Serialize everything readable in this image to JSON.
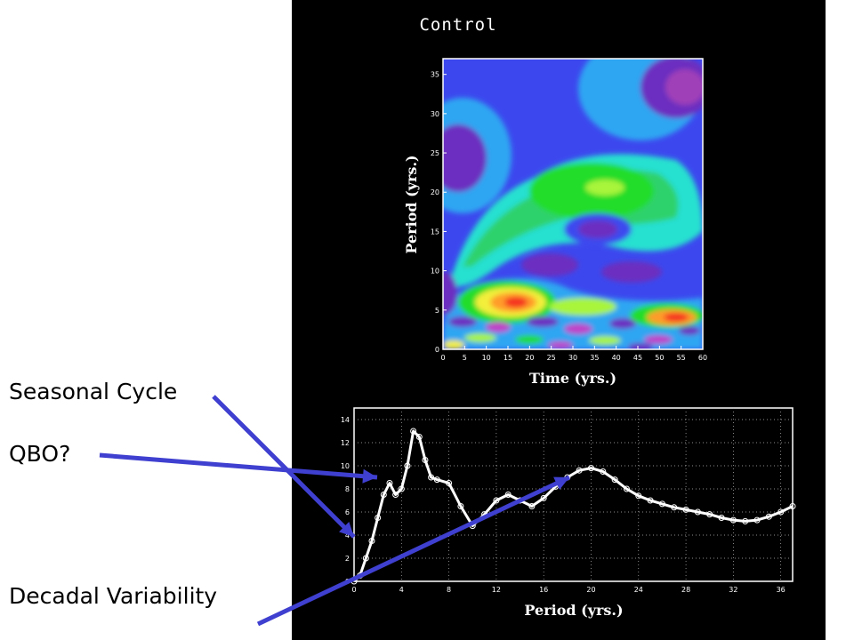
{
  "annotations": {
    "seasonal_cycle": "Seasonal Cycle",
    "qbo": "QBO?",
    "decadal_variability": "Decadal Variability"
  },
  "colors": {
    "arrow": "#3f3fd0",
    "panel_background": "#000000",
    "slide_background": "#ffffff",
    "wavelet_low": "#5a28c8",
    "wavelet_high": "#e81818"
  },
  "chart_data": [
    {
      "type": "heatmap",
      "title": "Control",
      "xlabel": "Time (yrs.)",
      "ylabel": "Period (yrs.)",
      "xlim": [
        0,
        60
      ],
      "ylim": [
        0,
        37
      ],
      "xticks": [
        0,
        5,
        10,
        15,
        20,
        25,
        30,
        35,
        40,
        45,
        50,
        55,
        60
      ],
      "yticks": [
        0,
        5,
        10,
        15,
        20,
        25,
        30,
        35
      ],
      "color_levels": [
        "#6c2fc0",
        "#3c48ee",
        "#2fa6f2",
        "#25e0d0",
        "#2fd26c",
        "#21dd2a",
        "#a8f53a",
        "#f3ef3a",
        "#ff9c2a",
        "#f53223"
      ],
      "features": [
        {
          "time": 38,
          "period": 21,
          "level": 7
        },
        {
          "time": 15,
          "period": 6,
          "level": 9
        },
        {
          "time": 55,
          "period": 4,
          "level": 9
        },
        {
          "time": 4,
          "period": 25,
          "level": 0
        },
        {
          "time": 58,
          "period": 33,
          "level": 0
        },
        {
          "time": 35,
          "period": 15,
          "level": 1
        },
        {
          "time": 25,
          "period": 10.5,
          "level": 1
        }
      ]
    },
    {
      "type": "line",
      "xlabel": "Period (yrs.)",
      "ylabel": "",
      "xlim": [
        0,
        37
      ],
      "ylim": [
        0,
        15
      ],
      "xticks": [
        0,
        4,
        8,
        12,
        16,
        20,
        24,
        28,
        32,
        36
      ],
      "yticks": [
        0,
        2,
        4,
        6,
        8,
        10,
        12,
        14
      ],
      "grid": true,
      "x": [
        0,
        0.5,
        1,
        1.5,
        2,
        2.5,
        3,
        3.5,
        4,
        4.5,
        5,
        5.5,
        6,
        6.5,
        7,
        8,
        9,
        10,
        11,
        12,
        13,
        14,
        15,
        16,
        17,
        18,
        19,
        20,
        21,
        22,
        23,
        24,
        25,
        26,
        27,
        28,
        29,
        30,
        31,
        32,
        33,
        34,
        35,
        36,
        37
      ],
      "y": [
        0,
        0.5,
        2,
        3.5,
        5.5,
        7.5,
        8.5,
        7.5,
        8,
        10,
        13,
        12.5,
        10.5,
        9,
        8.8,
        8.5,
        6.5,
        4.8,
        5.8,
        7,
        7.5,
        7,
        6.5,
        7.2,
        8.2,
        9,
        9.6,
        9.8,
        9.5,
        8.8,
        8,
        7.4,
        7,
        6.7,
        6.4,
        6.2,
        6,
        5.8,
        5.5,
        5.3,
        5.2,
        5.3,
        5.6,
        6,
        6.5
      ]
    }
  ]
}
